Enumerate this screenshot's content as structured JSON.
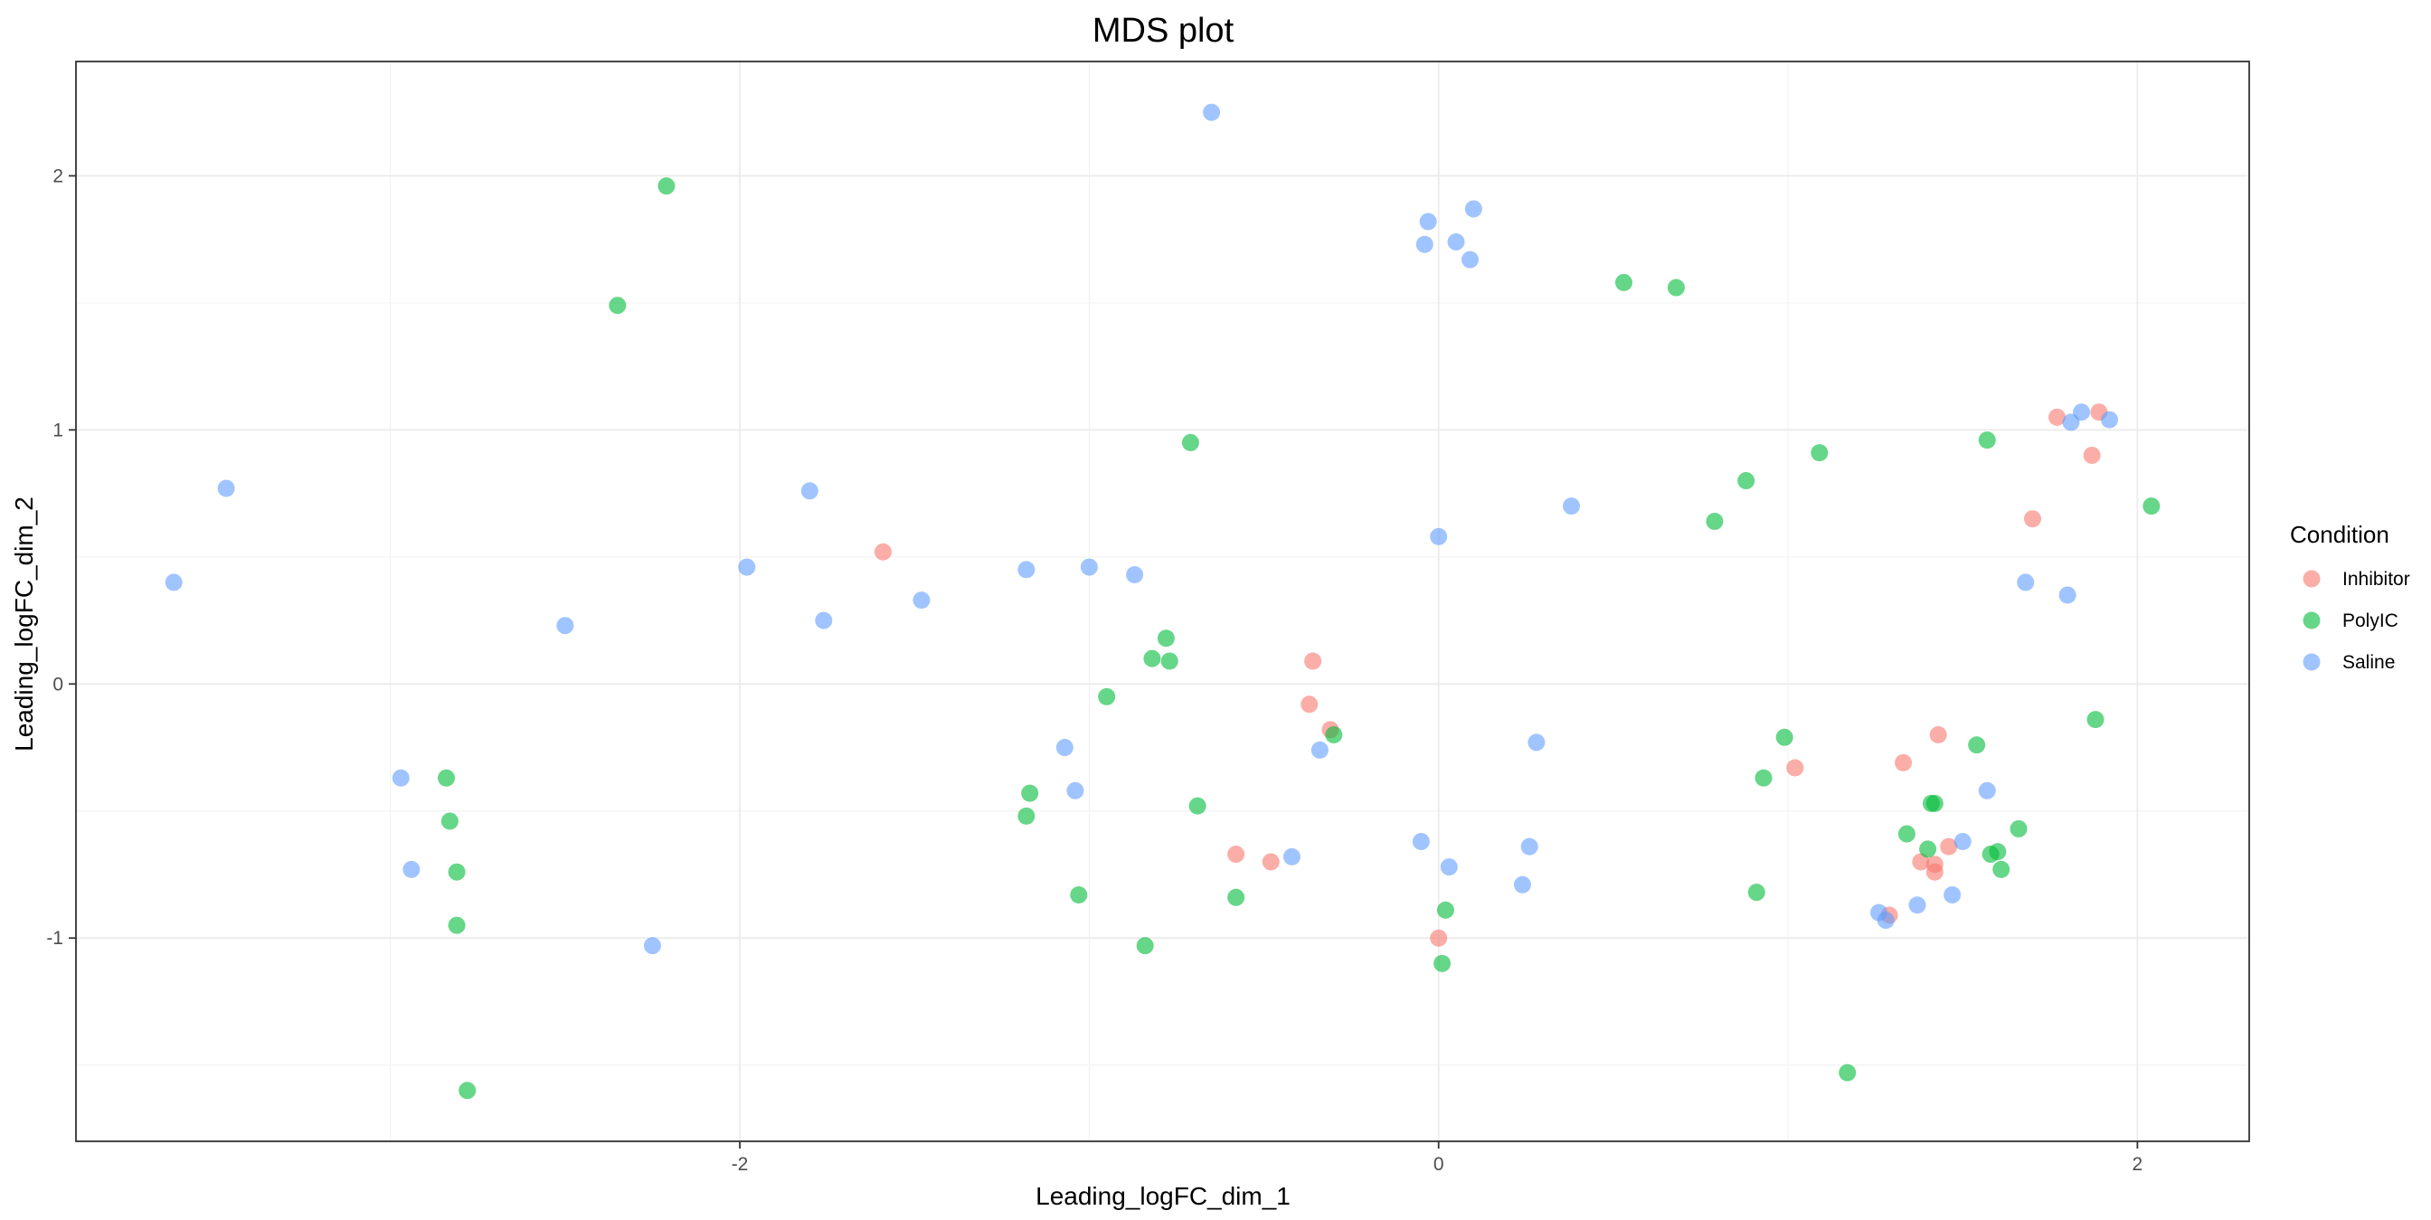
{
  "chart_data": {
    "type": "scatter",
    "title": "MDS plot",
    "xlabel": "Leading_logFC_dim_1",
    "ylabel": "Leading_logFC_dim_2",
    "xlim": [
      -3.9,
      2.32
    ],
    "ylim": [
      -1.8,
      2.45
    ],
    "x_ticks": [
      -2,
      0,
      2
    ],
    "x_tick_labels": [
      "-2",
      "0",
      "2"
    ],
    "y_ticks": [
      -1,
      0,
      1,
      2
    ],
    "y_tick_labels": [
      "-1",
      "0",
      "1",
      "2"
    ],
    "grid": true,
    "legend": {
      "title": "Condition",
      "position": "right"
    },
    "series": [
      {
        "name": "Inhibitor",
        "color": "#F8766D",
        "points": [
          [
            -1.59,
            0.52
          ],
          [
            -0.36,
            0.09
          ],
          [
            -0.37,
            -0.08
          ],
          [
            -0.31,
            -0.18
          ],
          [
            -0.58,
            -0.67
          ],
          [
            -0.48,
            -0.7
          ],
          [
            0.0,
            -1.0
          ],
          [
            1.02,
            -0.33
          ],
          [
            1.29,
            -0.91
          ],
          [
            1.33,
            -0.31
          ],
          [
            1.43,
            -0.2
          ],
          [
            1.38,
            -0.7
          ],
          [
            1.42,
            -0.71
          ],
          [
            1.42,
            -0.74
          ],
          [
            1.46,
            -0.64
          ],
          [
            1.7,
            0.65
          ],
          [
            1.77,
            1.05
          ],
          [
            1.87,
            0.9
          ],
          [
            1.89,
            1.07
          ]
        ]
      },
      {
        "name": "PolyIC",
        "color": "#00BA38",
        "points": [
          [
            -2.21,
            1.96
          ],
          [
            -2.35,
            1.49
          ],
          [
            -2.84,
            -0.37
          ],
          [
            -2.83,
            -0.54
          ],
          [
            -2.81,
            -0.74
          ],
          [
            -2.81,
            -0.95
          ],
          [
            -2.78,
            -1.6
          ],
          [
            -0.71,
            0.95
          ],
          [
            -0.78,
            0.18
          ],
          [
            -0.82,
            0.1
          ],
          [
            -0.77,
            0.09
          ],
          [
            -0.95,
            -0.05
          ],
          [
            -1.17,
            -0.43
          ],
          [
            -1.18,
            -0.52
          ],
          [
            -0.69,
            -0.48
          ],
          [
            -1.03,
            -0.83
          ],
          [
            -0.84,
            -1.03
          ],
          [
            -0.58,
            -0.84
          ],
          [
            -0.3,
            -0.2
          ],
          [
            0.02,
            -0.89
          ],
          [
            0.01,
            -1.1
          ],
          [
            0.53,
            1.58
          ],
          [
            0.68,
            1.56
          ],
          [
            0.79,
            0.64
          ],
          [
            0.88,
            0.8
          ],
          [
            1.09,
            0.91
          ],
          [
            0.99,
            -0.21
          ],
          [
            0.93,
            -0.37
          ],
          [
            0.91,
            -0.82
          ],
          [
            1.17,
            -1.53
          ],
          [
            1.34,
            -0.59
          ],
          [
            1.41,
            -0.47
          ],
          [
            1.42,
            -0.47
          ],
          [
            1.4,
            -0.65
          ],
          [
            1.54,
            -0.24
          ],
          [
            1.58,
            -0.67
          ],
          [
            1.6,
            -0.66
          ],
          [
            1.61,
            -0.73
          ],
          [
            1.66,
            -0.57
          ],
          [
            1.57,
            0.96
          ],
          [
            1.88,
            -0.14
          ],
          [
            2.04,
            0.7
          ]
        ]
      },
      {
        "name": "Saline",
        "color": "#619CFF",
        "points": [
          [
            -3.47,
            0.77
          ],
          [
            -3.62,
            0.4
          ],
          [
            -2.5,
            0.23
          ],
          [
            -2.97,
            -0.37
          ],
          [
            -2.94,
            -0.73
          ],
          [
            -2.25,
            -1.03
          ],
          [
            -1.8,
            0.76
          ],
          [
            -1.76,
            0.25
          ],
          [
            -1.98,
            0.46
          ],
          [
            -1.48,
            0.33
          ],
          [
            -1.18,
            0.45
          ],
          [
            -1.0,
            0.46
          ],
          [
            -0.87,
            0.43
          ],
          [
            -1.07,
            -0.25
          ],
          [
            -1.04,
            -0.42
          ],
          [
            -0.65,
            2.25
          ],
          [
            -0.42,
            -0.68
          ],
          [
            -0.34,
            -0.26
          ],
          [
            -0.03,
            1.82
          ],
          [
            -0.04,
            1.73
          ],
          [
            0.05,
            1.74
          ],
          [
            0.1,
            1.87
          ],
          [
            0.09,
            1.67
          ],
          [
            0.0,
            0.58
          ],
          [
            -0.05,
            -0.62
          ],
          [
            0.03,
            -0.72
          ],
          [
            0.24,
            -0.79
          ],
          [
            0.26,
            -0.64
          ],
          [
            0.28,
            -0.23
          ],
          [
            0.38,
            0.7
          ],
          [
            1.26,
            -0.9
          ],
          [
            1.28,
            -0.93
          ],
          [
            1.37,
            -0.87
          ],
          [
            1.47,
            -0.83
          ],
          [
            1.5,
            -0.62
          ],
          [
            1.57,
            -0.42
          ],
          [
            1.68,
            0.4
          ],
          [
            1.8,
            0.35
          ],
          [
            1.81,
            1.03
          ],
          [
            1.84,
            1.07
          ],
          [
            1.92,
            1.04
          ]
        ]
      }
    ]
  }
}
